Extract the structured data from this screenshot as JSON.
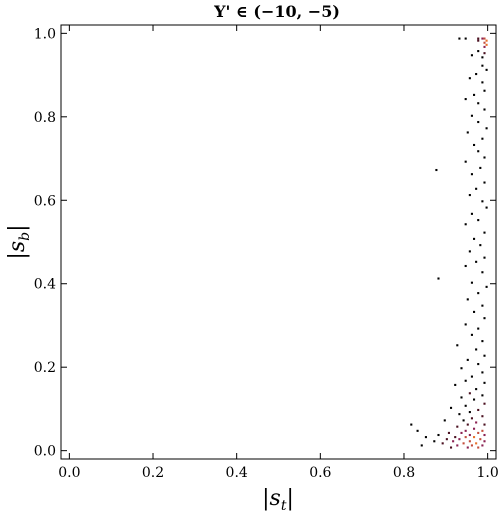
{
  "chart_data": {
    "type": "heatmap",
    "title": "Υ' ∈ (−10, −5)",
    "xlabel": "|s_t|",
    "ylabel": "|s_b|",
    "xlim": [
      -0.02,
      1.02
    ],
    "ylim": [
      -0.02,
      1.02
    ],
    "x_ticks": [
      0.0,
      0.2,
      0.4,
      0.6,
      0.8,
      1.0
    ],
    "y_ticks": [
      0.0,
      0.2,
      0.4,
      0.6,
      0.8,
      1.0
    ],
    "x_tick_labels": [
      "0.0",
      "0.2",
      "0.4",
      "0.6",
      "0.8",
      "1.0"
    ],
    "y_tick_labels": [
      "0.0",
      "0.2",
      "0.4",
      "0.6",
      "0.8",
      "1.0"
    ],
    "bin_width": 0.005,
    "color_scale": [
      "#000000",
      "#4a1020",
      "#8b2252",
      "#c44e3c",
      "#e8702a",
      "#ffa040"
    ],
    "cells": [
      [
        0.93,
        0.985,
        1
      ],
      [
        0.945,
        0.985,
        1
      ],
      [
        0.975,
        0.985,
        2
      ],
      [
        0.985,
        0.985,
        3
      ],
      [
        0.99,
        0.985,
        4
      ],
      [
        0.995,
        0.98,
        5
      ],
      [
        0.975,
        0.98,
        2
      ],
      [
        0.99,
        0.975,
        4
      ],
      [
        0.995,
        0.97,
        5
      ],
      [
        0.99,
        0.965,
        3
      ],
      [
        0.99,
        0.95,
        2
      ],
      [
        0.985,
        0.94,
        1
      ],
      [
        0.975,
        0.955,
        1
      ],
      [
        0.96,
        0.945,
        1
      ],
      [
        0.985,
        0.92,
        1
      ],
      [
        0.995,
        0.91,
        1
      ],
      [
        0.97,
        0.9,
        1
      ],
      [
        0.955,
        0.89,
        1
      ],
      [
        0.985,
        0.88,
        1
      ],
      [
        0.99,
        0.86,
        1
      ],
      [
        0.965,
        0.85,
        1
      ],
      [
        0.945,
        0.84,
        1
      ],
      [
        0.975,
        0.83,
        1
      ],
      [
        0.99,
        0.815,
        1
      ],
      [
        0.96,
        0.8,
        1
      ],
      [
        0.975,
        0.785,
        1
      ],
      [
        0.995,
        0.77,
        1
      ],
      [
        0.95,
        0.76,
        1
      ],
      [
        0.985,
        0.745,
        1
      ],
      [
        0.965,
        0.73,
        1
      ],
      [
        0.975,
        0.715,
        1
      ],
      [
        0.99,
        0.7,
        1
      ],
      [
        0.945,
        0.69,
        1
      ],
      [
        0.98,
        0.675,
        1
      ],
      [
        0.96,
        0.66,
        1
      ],
      [
        0.875,
        0.67,
        1
      ],
      [
        0.99,
        0.64,
        1
      ],
      [
        0.97,
        0.625,
        1
      ],
      [
        0.955,
        0.61,
        1
      ],
      [
        0.985,
        0.595,
        1
      ],
      [
        0.995,
        0.58,
        1
      ],
      [
        0.96,
        0.565,
        1
      ],
      [
        0.975,
        0.55,
        1
      ],
      [
        0.945,
        0.54,
        1
      ],
      [
        0.99,
        0.52,
        1
      ],
      [
        0.965,
        0.505,
        1
      ],
      [
        0.98,
        0.49,
        1
      ],
      [
        0.955,
        0.475,
        1
      ],
      [
        0.99,
        0.46,
        1
      ],
      [
        0.97,
        0.45,
        1
      ],
      [
        0.945,
        0.44,
        1
      ],
      [
        0.985,
        0.425,
        1
      ],
      [
        0.88,
        0.41,
        1
      ],
      [
        0.96,
        0.4,
        1
      ],
      [
        0.995,
        0.39,
        1
      ],
      [
        0.975,
        0.375,
        1
      ],
      [
        0.95,
        0.36,
        1
      ],
      [
        0.985,
        0.345,
        1
      ],
      [
        0.965,
        0.33,
        1
      ],
      [
        0.99,
        0.315,
        1
      ],
      [
        0.945,
        0.3,
        1
      ],
      [
        0.975,
        0.29,
        1
      ],
      [
        0.96,
        0.275,
        1
      ],
      [
        0.985,
        0.26,
        1
      ],
      [
        0.925,
        0.25,
        1
      ],
      [
        0.97,
        0.24,
        1
      ],
      [
        0.99,
        0.225,
        1
      ],
      [
        0.95,
        0.215,
        1
      ],
      [
        0.975,
        0.205,
        1
      ],
      [
        0.935,
        0.195,
        1
      ],
      [
        0.985,
        0.185,
        1
      ],
      [
        0.96,
        0.175,
        1
      ],
      [
        0.945,
        0.165,
        1
      ],
      [
        0.99,
        0.16,
        1
      ],
      [
        0.92,
        0.155,
        1
      ],
      [
        0.97,
        0.145,
        1
      ],
      [
        0.955,
        0.135,
        2
      ],
      [
        0.985,
        0.13,
        1
      ],
      [
        0.935,
        0.125,
        1
      ],
      [
        0.965,
        0.12,
        1
      ],
      [
        0.99,
        0.11,
        2
      ],
      [
        0.945,
        0.105,
        1
      ],
      [
        0.91,
        0.1,
        1
      ],
      [
        0.975,
        0.095,
        2
      ],
      [
        0.955,
        0.09,
        1
      ],
      [
        0.93,
        0.085,
        1
      ],
      [
        0.985,
        0.08,
        2
      ],
      [
        0.96,
        0.075,
        2
      ],
      [
        0.94,
        0.07,
        1
      ],
      [
        0.895,
        0.07,
        1
      ],
      [
        0.97,
        0.065,
        3
      ],
      [
        0.95,
        0.06,
        2
      ],
      [
        0.99,
        0.06,
        2
      ],
      [
        0.925,
        0.055,
        2
      ],
      [
        0.965,
        0.05,
        3
      ],
      [
        0.945,
        0.045,
        3
      ],
      [
        0.985,
        0.045,
        4
      ],
      [
        0.905,
        0.04,
        2
      ],
      [
        0.935,
        0.04,
        3
      ],
      [
        0.975,
        0.04,
        4
      ],
      [
        0.955,
        0.035,
        3
      ],
      [
        0.99,
        0.035,
        3
      ],
      [
        0.88,
        0.035,
        1
      ],
      [
        0.92,
        0.03,
        2
      ],
      [
        0.945,
        0.03,
        4
      ],
      [
        0.965,
        0.03,
        5
      ],
      [
        0.98,
        0.025,
        4
      ],
      [
        0.9,
        0.025,
        2
      ],
      [
        0.93,
        0.025,
        3
      ],
      [
        0.955,
        0.02,
        4
      ],
      [
        0.99,
        0.02,
        3
      ],
      [
        0.87,
        0.02,
        1
      ],
      [
        0.915,
        0.02,
        3
      ],
      [
        0.94,
        0.015,
        4
      ],
      [
        0.97,
        0.015,
        5
      ],
      [
        0.985,
        0.01,
        3
      ],
      [
        0.89,
        0.015,
        2
      ],
      [
        0.96,
        0.01,
        4
      ],
      [
        0.925,
        0.01,
        3
      ],
      [
        0.85,
        0.03,
        1
      ],
      [
        0.83,
        0.045,
        1
      ],
      [
        0.815,
        0.06,
        1
      ],
      [
        0.84,
        0.01,
        1
      ],
      [
        0.95,
        0.005,
        3
      ],
      [
        0.91,
        0.005,
        2
      ],
      [
        0.975,
        0.005,
        4
      ]
    ]
  }
}
